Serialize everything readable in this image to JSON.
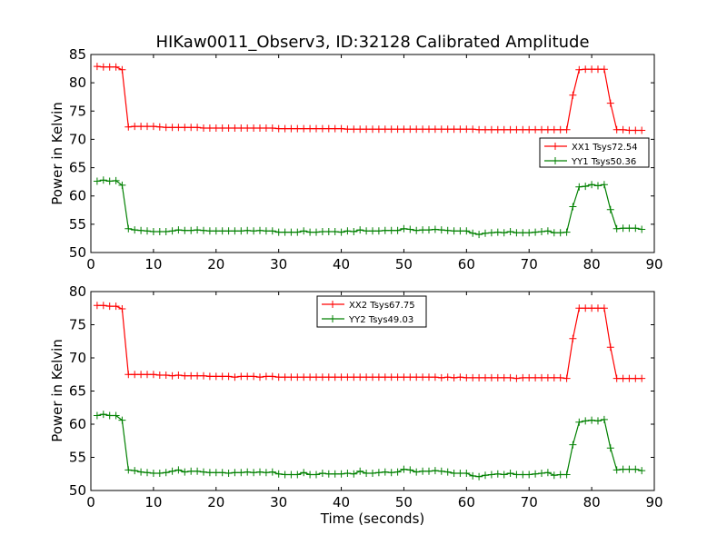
{
  "chart_data": [
    {
      "type": "line",
      "title": "HIKaw0011_Observ3, ID:32128 Calibrated Amplitude",
      "xlabel": "",
      "ylabel": "Power in Kelvin",
      "xlim": [
        0,
        90
      ],
      "ylim": [
        50,
        85
      ],
      "xticks": [
        "0",
        "10",
        "20",
        "30",
        "40",
        "50",
        "60",
        "70",
        "80",
        "90"
      ],
      "yticks": [
        "50",
        "55",
        "60",
        "65",
        "70",
        "75",
        "80",
        "85"
      ],
      "legend_position": "center-right",
      "grid": false,
      "x": [
        1,
        2,
        3,
        4,
        5,
        6,
        7,
        8,
        9,
        10,
        11,
        12,
        13,
        14,
        15,
        16,
        17,
        18,
        19,
        20,
        21,
        22,
        23,
        24,
        25,
        26,
        27,
        28,
        29,
        30,
        31,
        32,
        33,
        34,
        35,
        36,
        37,
        38,
        39,
        40,
        41,
        42,
        43,
        44,
        45,
        46,
        47,
        48,
        49,
        50,
        51,
        52,
        53,
        54,
        55,
        56,
        57,
        58,
        59,
        60,
        61,
        62,
        63,
        64,
        65,
        66,
        67,
        68,
        69,
        70,
        71,
        72,
        73,
        74,
        75,
        76,
        77,
        78,
        79,
        80,
        81,
        82,
        83,
        84,
        85,
        86,
        87,
        88
      ],
      "series": [
        {
          "name": "XX1 Tsys72.54",
          "color": "#ff0000",
          "values": [
            82.9,
            82.8,
            82.8,
            82.8,
            82.3,
            72.2,
            72.3,
            72.3,
            72.3,
            72.3,
            72.2,
            72.1,
            72.1,
            72.1,
            72.1,
            72.1,
            72.1,
            72.0,
            72.0,
            72.0,
            72.0,
            72.0,
            72.0,
            72.0,
            72.0,
            72.0,
            72.0,
            72.0,
            72.0,
            71.9,
            71.9,
            71.9,
            71.9,
            71.9,
            71.9,
            71.9,
            71.9,
            71.9,
            71.9,
            71.9,
            71.8,
            71.8,
            71.8,
            71.8,
            71.8,
            71.8,
            71.8,
            71.8,
            71.8,
            71.8,
            71.8,
            71.8,
            71.8,
            71.8,
            71.8,
            71.8,
            71.8,
            71.8,
            71.8,
            71.8,
            71.8,
            71.7,
            71.7,
            71.7,
            71.7,
            71.7,
            71.7,
            71.7,
            71.7,
            71.7,
            71.7,
            71.7,
            71.7,
            71.7,
            71.7,
            71.7,
            77.8,
            82.3,
            82.4,
            82.4,
            82.4,
            82.4,
            76.4,
            71.7,
            71.7,
            71.6,
            71.6,
            71.6
          ]
        },
        {
          "name": "YY1 Tsys50.36",
          "color": "#008000",
          "values": [
            62.6,
            62.8,
            62.6,
            62.7,
            61.9,
            54.2,
            54.0,
            53.9,
            53.8,
            53.7,
            53.7,
            53.7,
            53.8,
            54.0,
            53.9,
            53.9,
            54.0,
            53.9,
            53.8,
            53.8,
            53.8,
            53.8,
            53.8,
            53.8,
            53.9,
            53.8,
            53.9,
            53.8,
            53.8,
            53.6,
            53.6,
            53.6,
            53.6,
            53.8,
            53.6,
            53.6,
            53.7,
            53.7,
            53.7,
            53.6,
            53.8,
            53.7,
            54.0,
            53.8,
            53.8,
            53.8,
            53.9,
            53.9,
            53.9,
            54.2,
            54.1,
            53.9,
            54.0,
            54.0,
            54.1,
            54.0,
            53.9,
            53.8,
            53.8,
            53.8,
            53.4,
            53.2,
            53.4,
            53.5,
            53.6,
            53.5,
            53.7,
            53.5,
            53.5,
            53.5,
            53.6,
            53.7,
            53.8,
            53.5,
            53.5,
            53.6,
            58.1,
            61.6,
            61.7,
            62.0,
            61.8,
            62.0,
            57.6,
            54.2,
            54.3,
            54.3,
            54.3,
            54.1
          ]
        }
      ]
    },
    {
      "type": "line",
      "title": "",
      "xlabel": "Time (seconds)",
      "ylabel": "Power in Kelvin",
      "xlim": [
        0,
        90
      ],
      "ylim": [
        50,
        80
      ],
      "xticks": [
        "0",
        "10",
        "20",
        "30",
        "40",
        "50",
        "60",
        "70",
        "80",
        "90"
      ],
      "yticks": [
        "50",
        "55",
        "60",
        "65",
        "70",
        "75",
        "80"
      ],
      "legend_position": "upper-center",
      "grid": false,
      "x": [
        1,
        2,
        3,
        4,
        5,
        6,
        7,
        8,
        9,
        10,
        11,
        12,
        13,
        14,
        15,
        16,
        17,
        18,
        19,
        20,
        21,
        22,
        23,
        24,
        25,
        26,
        27,
        28,
        29,
        30,
        31,
        32,
        33,
        34,
        35,
        36,
        37,
        38,
        39,
        40,
        41,
        42,
        43,
        44,
        45,
        46,
        47,
        48,
        49,
        50,
        51,
        52,
        53,
        54,
        55,
        56,
        57,
        58,
        59,
        60,
        61,
        62,
        63,
        64,
        65,
        66,
        67,
        68,
        69,
        70,
        71,
        72,
        73,
        74,
        75,
        76,
        77,
        78,
        79,
        80,
        81,
        82,
        83,
        84,
        85,
        86,
        87,
        88
      ],
      "series": [
        {
          "name": "XX2 Tsys67.75",
          "color": "#ff0000",
          "values": [
            77.9,
            77.9,
            77.8,
            77.8,
            77.4,
            67.5,
            67.5,
            67.5,
            67.5,
            67.5,
            67.4,
            67.4,
            67.3,
            67.4,
            67.3,
            67.3,
            67.3,
            67.3,
            67.2,
            67.2,
            67.2,
            67.2,
            67.1,
            67.2,
            67.2,
            67.2,
            67.1,
            67.2,
            67.2,
            67.1,
            67.1,
            67.1,
            67.1,
            67.1,
            67.1,
            67.1,
            67.1,
            67.1,
            67.1,
            67.1,
            67.1,
            67.1,
            67.1,
            67.1,
            67.1,
            67.1,
            67.1,
            67.1,
            67.1,
            67.1,
            67.1,
            67.1,
            67.1,
            67.1,
            67.1,
            67.0,
            67.1,
            67.0,
            67.1,
            67.0,
            67.0,
            67.0,
            67.0,
            67.0,
            67.0,
            67.0,
            67.0,
            66.9,
            67.0,
            67.0,
            67.0,
            67.0,
            67.0,
            67.0,
            67.0,
            66.9,
            72.9,
            77.5,
            77.5,
            77.5,
            77.5,
            77.5,
            71.6,
            66.9,
            66.9,
            66.9,
            66.9,
            66.9
          ]
        },
        {
          "name": "YY2 Tsys49.03",
          "color": "#008000",
          "values": [
            61.3,
            61.5,
            61.3,
            61.3,
            60.6,
            53.1,
            53.0,
            52.8,
            52.7,
            52.6,
            52.6,
            52.7,
            52.9,
            53.1,
            52.8,
            52.9,
            52.9,
            52.8,
            52.7,
            52.7,
            52.7,
            52.6,
            52.7,
            52.7,
            52.8,
            52.7,
            52.8,
            52.7,
            52.8,
            52.5,
            52.4,
            52.4,
            52.4,
            52.7,
            52.4,
            52.4,
            52.6,
            52.5,
            52.5,
            52.5,
            52.6,
            52.5,
            52.9,
            52.6,
            52.6,
            52.7,
            52.8,
            52.7,
            52.8,
            53.2,
            53.1,
            52.8,
            52.9,
            52.9,
            53.0,
            52.9,
            52.8,
            52.6,
            52.6,
            52.6,
            52.2,
            52.1,
            52.3,
            52.4,
            52.5,
            52.4,
            52.6,
            52.4,
            52.4,
            52.4,
            52.5,
            52.6,
            52.7,
            52.3,
            52.4,
            52.4,
            56.9,
            60.3,
            60.5,
            60.6,
            60.5,
            60.7,
            56.4,
            53.1,
            53.2,
            53.2,
            53.2,
            53.0
          ]
        }
      ]
    }
  ]
}
